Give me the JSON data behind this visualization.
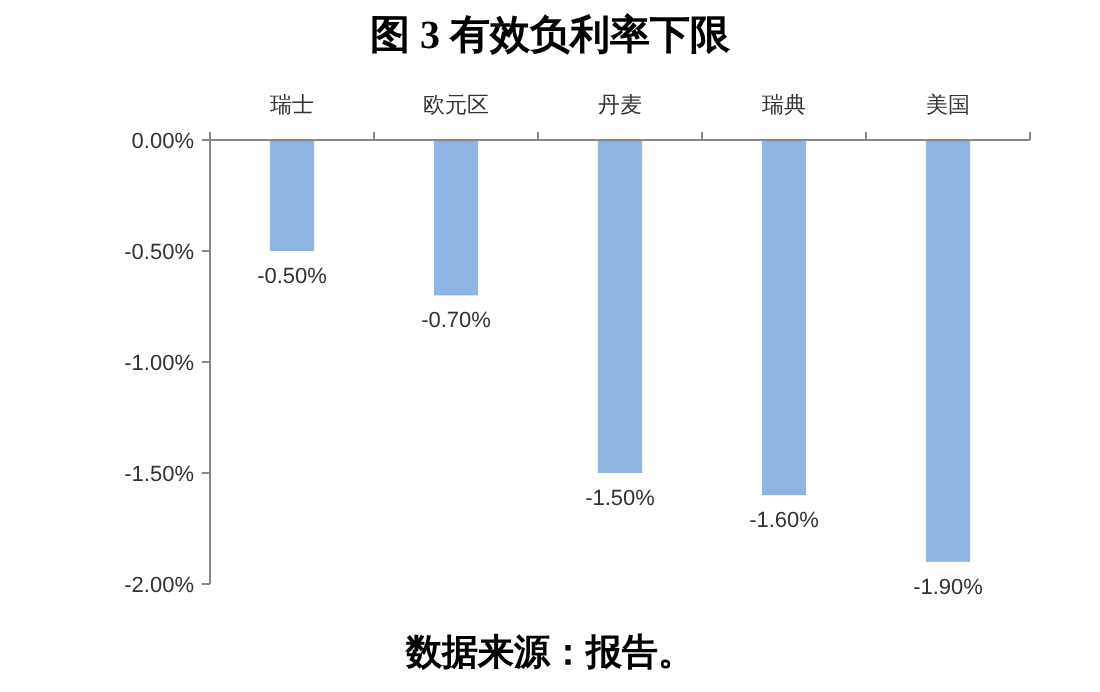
{
  "chart_data": {
    "type": "bar",
    "title": "图 3 有效负利率下限",
    "categories": [
      "瑞士",
      "欧元区",
      "丹麦",
      "瑞典",
      "美国"
    ],
    "values": [
      -0.5,
      -0.7,
      -1.5,
      -1.6,
      -1.9
    ],
    "value_labels": [
      "-0.50%",
      "-0.70%",
      "-1.50%",
      "-1.60%",
      "-1.90%"
    ],
    "color": "#8db4e2",
    "ylim": [
      -2,
      0
    ],
    "yticks": [
      {
        "value": 0,
        "label": "0.00%"
      },
      {
        "value": -0.5,
        "label": "-0.50%"
      },
      {
        "value": -1,
        "label": "-1.00%"
      },
      {
        "value": -1.5,
        "label": "-1.50%"
      },
      {
        "value": -2,
        "label": "-2.00%"
      }
    ],
    "grid": false,
    "annotations": [
      "数据来源：报告。"
    ]
  }
}
